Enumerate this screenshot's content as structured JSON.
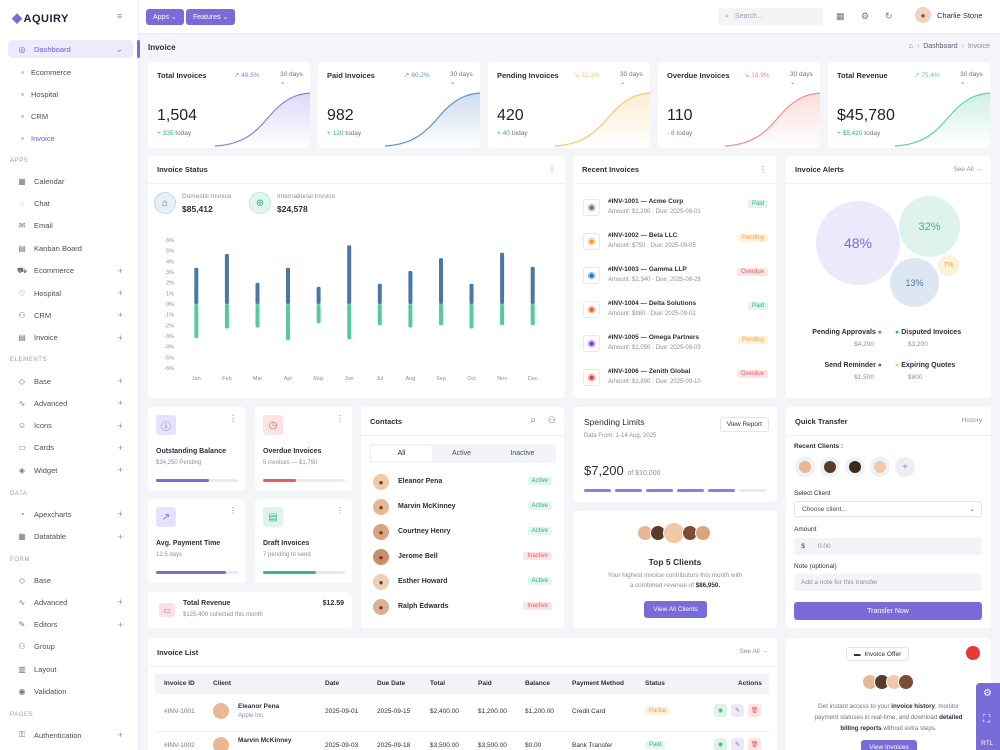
{
  "app": {
    "name": "AQUIRY"
  },
  "topbar": {
    "apps_label": "Apps",
    "features_label": "Features",
    "search_placeholder": "Search...",
    "user_name": "Charlie Stone"
  },
  "sidebar": {
    "dashboard": "Dashboard",
    "dashboard_sub": [
      "Ecommerce",
      "Hospital",
      "CRM",
      "Invoice"
    ],
    "sections": {
      "apps": "APPS",
      "elements": "ELEMENTS",
      "data": "DATA",
      "form": "FORM",
      "pages": "PAGES"
    },
    "apps": [
      "Calendar",
      "Chat",
      "Email",
      "Kanban Board",
      "Ecommerce",
      "Hospital",
      "CRM",
      "Invoice"
    ],
    "elements": [
      "Base",
      "Advanced",
      "Icons",
      "Cards",
      "Widget"
    ],
    "data": [
      "Apexcharts",
      "Datatable"
    ],
    "form": [
      "Base",
      "Advanced",
      "Editors",
      "Group",
      "Layout",
      "Validation"
    ],
    "pages": [
      "Authentication"
    ]
  },
  "page": {
    "title": "Invoice",
    "breadcrumb": [
      "Dashboard",
      "Invoice"
    ]
  },
  "stats": [
    {
      "label": "Total Invoices",
      "change": "48.5%",
      "period": "30 days",
      "value": "1,504",
      "delta": "+ 335",
      "delta_label": "today",
      "color": "#8b7ee0",
      "up": true
    },
    {
      "label": "Paid Invoices",
      "change": "60.2%",
      "period": "30 days",
      "value": "982",
      "delta": "+ 120",
      "delta_label": "today",
      "color": "#5b8fc4",
      "up": true
    },
    {
      "label": "Pending Invoices",
      "change": "32.1%",
      "period": "30 days",
      "value": "420",
      "delta": "+ 40",
      "delta_label": "today",
      "color": "#f4c86a",
      "up": false
    },
    {
      "label": "Overdue Invoices",
      "change": "18.9%",
      "period": "30 days",
      "value": "110",
      "delta": "- 8",
      "delta_label": "today",
      "color": "#f08a8a",
      "up": false
    },
    {
      "label": "Total Revenue",
      "change": "75.4%",
      "period": "30 days",
      "value": "$45,780",
      "delta": "+ $5,420",
      "delta_label": "today",
      "color": "#5fcfa6",
      "up": true
    }
  ],
  "invoice_status": {
    "title": "Invoice Status",
    "domestic_label": "Domestic Invoice",
    "domestic_value": "$85,412",
    "international_label": "International Invoice",
    "international_value": "$24,578"
  },
  "chart_data": {
    "type": "bar",
    "categories": [
      "Jan",
      "Feb",
      "Mar",
      "Apr",
      "May",
      "Jun",
      "Jul",
      "Aug",
      "Sep",
      "Oct",
      "Nov",
      "Dec"
    ],
    "series": [
      {
        "values": [
          3.4,
          4.7,
          2.0,
          3.4,
          1.6,
          5.5,
          1.9,
          3.1,
          4.3,
          1.9,
          4.8,
          3.5
        ]
      },
      {
        "values": [
          -3.2,
          -2.3,
          -2.2,
          -3.4,
          -1.8,
          -3.3,
          -2.0,
          -2.2,
          -2.0,
          -2.3,
          -2.0,
          -2.0
        ]
      }
    ],
    "yticks": [
      "6%",
      "5%",
      "4%",
      "3%",
      "2%",
      "1%",
      "0%",
      "-1%",
      "-2%",
      "-3%",
      "-4%",
      "-5%",
      "-6%"
    ],
    "ylim": [
      -6,
      6
    ],
    "colors": [
      "#4a77a6",
      "#57c9a0"
    ]
  },
  "recent_invoices": {
    "title": "Recent Invoices",
    "items": [
      {
        "id": "#INV-1001 — Acme Corp",
        "meta": "Amount: $1,200 · Due: 2025-09-01",
        "status": "Paid"
      },
      {
        "id": "#INV-1002 — Beta LLC",
        "meta": "Amount: $750 · Due: 2025-09-05",
        "status": "Pending"
      },
      {
        "id": "#INV-1003 — Gamma LLP",
        "meta": "Amount: $2,340 · Due: 2025-08-28",
        "status": "Overdue"
      },
      {
        "id": "#INV-1004 — Delta Solutions",
        "meta": "Amount: $980 · Due: 2025-09-02",
        "status": "Paid"
      },
      {
        "id": "#INV-1005 — Omega Partners",
        "meta": "Amount: $1,050 · Due: 2025-09-03",
        "status": "Pending"
      },
      {
        "id": "#INV-1006 — Zenith Global",
        "meta": "Amount: $1,890 · Due: 2025-09-10",
        "status": "Overdue"
      }
    ]
  },
  "alerts": {
    "title": "Invoice Alerts",
    "see_all": "See All",
    "bubbles": [
      "48%",
      "32%",
      "13%",
      "7%"
    ],
    "legend": [
      {
        "label": "Pending Approvals",
        "value": "$4,200"
      },
      {
        "label": "Disputed Invoices",
        "value": "$3,200"
      },
      {
        "label": "Send Reminder",
        "value": "$1,500"
      },
      {
        "label": "Expiring Quotes",
        "value": "$800"
      }
    ]
  },
  "mini": [
    {
      "title": "Outstanding Balance",
      "sub": "$34,250 Pending",
      "progress": 0.65
    },
    {
      "title": "Overdue Invoices",
      "sub": "5 invoices — $1,750",
      "progress": 0.4
    },
    {
      "title": "Avg. Payment Time",
      "sub": "12.5 days",
      "progress": 0.85
    },
    {
      "title": "Draft Invoices",
      "sub": "7 pending to send",
      "progress": 0.65
    }
  ],
  "total_revenue": {
    "title": "Total Revenue",
    "sub": "$125,400 collected this month",
    "value": "$12.59"
  },
  "contacts": {
    "title": "Contacts",
    "tabs": [
      "All",
      "Active",
      "Inactive"
    ],
    "items": [
      {
        "name": "Eleanor Pena",
        "status": "Active"
      },
      {
        "name": "Marvin McKinney",
        "status": "Active"
      },
      {
        "name": "Courtney Henry",
        "status": "Active"
      },
      {
        "name": "Jerome Bell",
        "status": "Inactive"
      },
      {
        "name": "Esther Howard",
        "status": "Active"
      },
      {
        "name": "Ralph Edwards",
        "status": "Inactive"
      }
    ]
  },
  "spending": {
    "title": "Spending Limits",
    "sub": "Data From: 1-14 Aug, 2025",
    "button": "View Report",
    "value": "$7,200",
    "of": "of $10,000"
  },
  "top_clients": {
    "title": "Top 5 Clients",
    "desc1": "Your highest invoice contributors this month with",
    "desc2": "a combined revenue of",
    "amount": "$86,950.",
    "button": "View All Clients"
  },
  "quick_transfer": {
    "title": "Quick Transfer",
    "history": "History",
    "recent": "Recent Clients :",
    "select_label": "Select Client",
    "select_placeholder": "Choose client...",
    "amount_label": "Amount",
    "currency": "$",
    "amount_placeholder": "0.00",
    "note_label": "Note (optional)",
    "note_placeholder": "Add a note for this transfer",
    "button": "Transfer Now"
  },
  "invoice_list": {
    "title": "Invoice List",
    "see_all": "See All",
    "columns": [
      "Invoice ID",
      "Client",
      "Date",
      "Due Date",
      "Total",
      "Paid",
      "Balance",
      "Payment Method",
      "Status",
      "Actions"
    ],
    "rows": [
      {
        "id": "#INV-1001",
        "client": "Eleanor Pena",
        "company": "Apple Inc.",
        "date": "2025-09-01",
        "due": "2025-09-15",
        "total": "$2,400.00",
        "paid": "$1,200.00",
        "balance": "$1,200.00",
        "method": "Credit Card",
        "status": "Partial"
      },
      {
        "id": "#INV-1002",
        "client": "Marvin McKinney",
        "company": "",
        "date": "2025-09-03",
        "due": "2025-09-18",
        "total": "$3,500.00",
        "paid": "$3,500.00",
        "balance": "$0.00",
        "method": "Bank Transfer",
        "status": "Paid"
      }
    ]
  },
  "offer": {
    "badge": "Invoice Offer",
    "text1": "Get instant access to your",
    "bold1": "invoice history",
    "text2": ", monitor",
    "text3": "payment statuses in real-time, and download",
    "bold2": "detailed",
    "bold3": "billing reports",
    "text4": "without extra steps.",
    "button": "View Invoices"
  },
  "side_tab": {
    "label": "RTL"
  }
}
